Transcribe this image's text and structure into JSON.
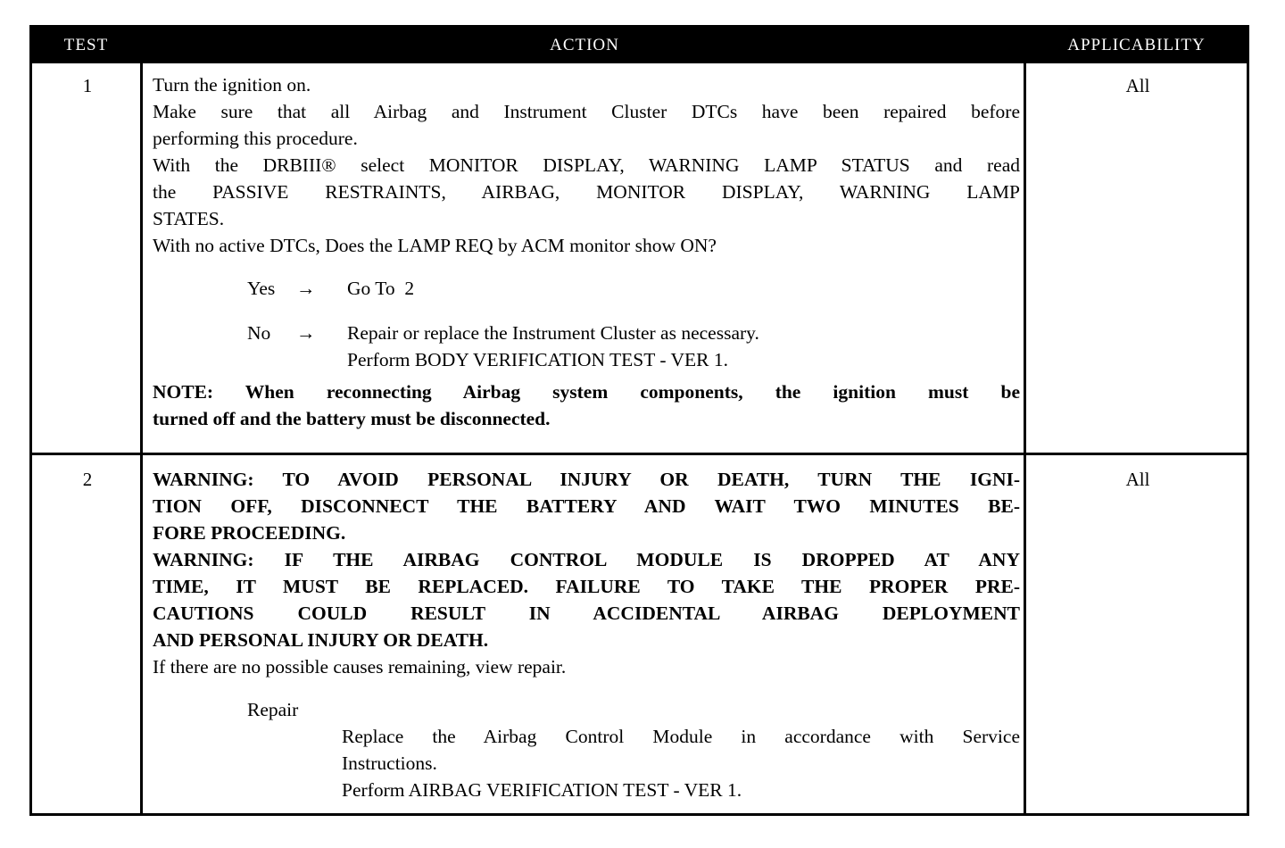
{
  "header": {
    "test": "TEST",
    "action": "ACTION",
    "applicability": "APPLICABILITY"
  },
  "rows": [
    {
      "test": "1",
      "applicability": "All",
      "lines": [
        "Turn the ignition on.",
        "Make sure that all Airbag and Instrument Cluster DTCs have been repaired before",
        "performing this procedure.",
        "With the DRBIII® select MONITOR DISPLAY, WARNING LAMP STATUS and read",
        "the PASSIVE RESTRAINTS, AIRBAG, MONITOR DISPLAY, WARNING LAMP",
        "STATES.",
        "With no active DTCs, Does the LAMP REQ by ACM monitor show ON?"
      ],
      "yes": {
        "label": "Yes",
        "arrow": "→",
        "action": "Go To  2"
      },
      "no": {
        "label": "No",
        "arrow": "→",
        "action1": "Repair or replace the Instrument Cluster as necessary.",
        "action2": "Perform BODY VERIFICATION TEST - VER 1."
      },
      "note": [
        "NOTE: When reconnecting Airbag system components, the ignition must be",
        "turned off and the battery must be disconnected."
      ]
    },
    {
      "test": "2",
      "applicability": "All",
      "warnings": [
        "WARNING: TO AVOID PERSONAL INJURY OR DEATH, TURN THE IGNI-",
        "TION OFF, DISCONNECT THE BATTERY AND WAIT TWO MINUTES BE-",
        "FORE PROCEEDING.",
        "WARNING: IF THE AIRBAG CONTROL MODULE IS DROPPED AT ANY",
        "TIME, IT MUST BE REPLACED. FAILURE TO TAKE THE PROPER PRE-",
        "CAUTIONS COULD RESULT IN ACCIDENTAL AIRBAG DEPLOYMENT",
        "AND PERSONAL INJURY OR DEATH."
      ],
      "text": "If there are no possible causes remaining, view repair.",
      "repair_label": "Repair",
      "repair": [
        "Replace the Airbag Control Module in accordance with Service",
        "Instructions.",
        "Perform AIRBAG VERIFICATION TEST - VER 1."
      ]
    }
  ]
}
